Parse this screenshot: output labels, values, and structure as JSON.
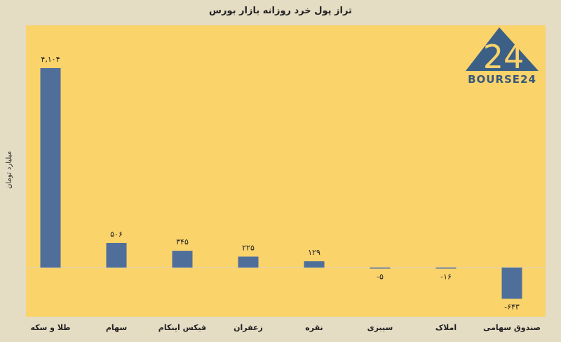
{
  "chart_data": {
    "type": "bar",
    "title": "تراز پول خرد روزانه بازار بورس",
    "ylabel": "میلیارد تومان",
    "xlabel": "",
    "categories": [
      "طلا و سکه",
      "سهام",
      "فیکس اینکام",
      "زعفران",
      "نقره",
      "سیبزی",
      "املاک",
      "صندوق سهامی"
    ],
    "values": [
      4104,
      506,
      345,
      225,
      129,
      -5,
      -16,
      -643
    ],
    "value_labels": [
      "۴,۱۰۴",
      "۵۰۶",
      "۳۴۵",
      "۲۲۵",
      "۱۲۹",
      "-۵",
      "-۱۶",
      "-۶۴۳"
    ],
    "ylim": [
      -700,
      4500
    ],
    "grid": false,
    "bar_color": "#4f6f9a",
    "plot_bg": "#fbd36b",
    "page_bg": "#e5dcc4"
  },
  "logo": {
    "digits": "24",
    "word": "BOURSE24",
    "color": "#35587a"
  }
}
